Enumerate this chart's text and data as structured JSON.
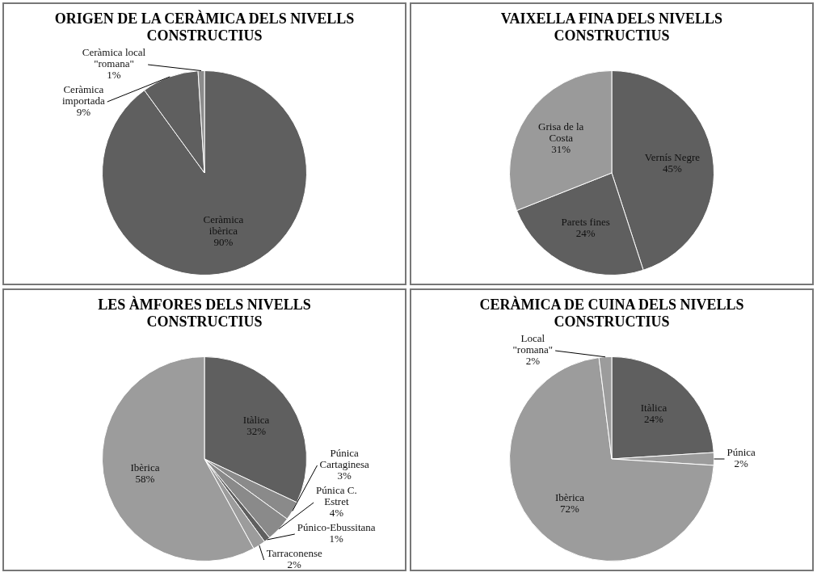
{
  "chart_data": [
    {
      "type": "pie",
      "title": "ORIGEN DE LA CERÀMICA DELS NIVELLS CONSTRUCTIUS",
      "categories": [
        "Ceràmica ibèrica",
        "Ceràmica importada",
        "Ceràmica local \"romana\""
      ],
      "values": [
        90,
        9,
        1
      ],
      "value_labels": [
        "90%",
        "9%",
        "1%"
      ],
      "colors": [
        "#5f5f5f",
        "#5f5f5f",
        "#8c8c8c"
      ]
    },
    {
      "type": "pie",
      "title": "VAIXELLA FINA DELS NIVELLS CONSTRUCTIUS",
      "categories": [
        "Vernís Negre",
        "Parets fines",
        "Grisa de la Costa"
      ],
      "values": [
        45,
        24,
        31
      ],
      "value_labels": [
        "45%",
        "24%",
        "31%"
      ],
      "colors": [
        "#5f5f5f",
        "#5f5f5f",
        "#9a9a9a"
      ]
    },
    {
      "type": "pie",
      "title": "LES ÀMFORES DELS NIVELLS CONSTRUCTIUS",
      "categories": [
        "Itàlica",
        "Púnica Cartaginesa",
        "Púnica C. Estret",
        "Púnico-Ebussitana",
        "Tarraconense",
        "Ibèrica"
      ],
      "values": [
        32,
        3,
        4,
        1,
        2,
        58
      ],
      "value_labels": [
        "32%",
        "3%",
        "4%",
        "1%",
        "2%",
        "58%"
      ],
      "colors": [
        "#5f5f5f",
        "#8a8a8a",
        "#8a8a8a",
        "#5f5f5f",
        "#9c9c9c",
        "#9c9c9c"
      ]
    },
    {
      "type": "pie",
      "title": "CERÀMICA DE CUINA DELS NIVELLS CONSTRUCTIUS",
      "categories": [
        "Itàlica",
        "Púnica",
        "Ibèrica",
        "Local \"romana\""
      ],
      "values": [
        24,
        2,
        72,
        2
      ],
      "value_labels": [
        "24%",
        "2%",
        "72%",
        "2%"
      ],
      "colors": [
        "#5f5f5f",
        "#9c9c9c",
        "#9c9c9c",
        "#9c9c9c"
      ]
    }
  ]
}
